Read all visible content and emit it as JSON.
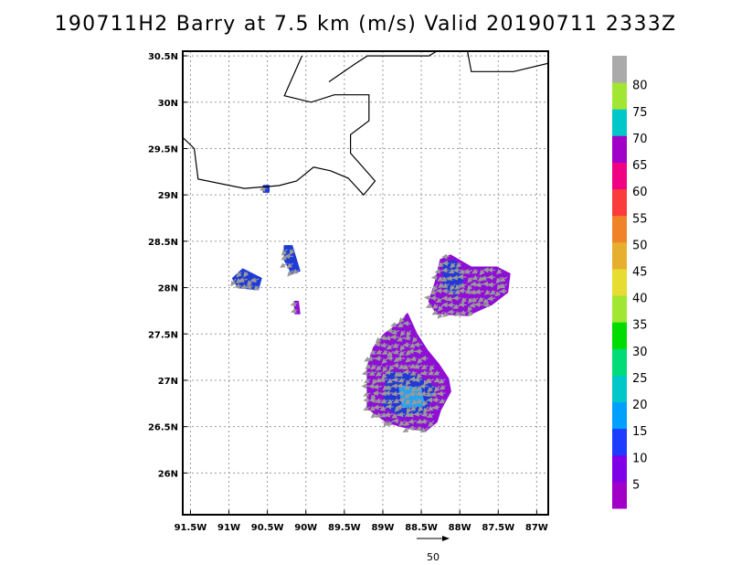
{
  "title": "190711H2 Barry at 7.5 km (m/s) Valid 20190711  2333Z",
  "x_ticks": [
    {
      "value": -91.5,
      "label": "91.5W"
    },
    {
      "value": -91.0,
      "label": "91W"
    },
    {
      "value": -90.5,
      "label": "90.5W"
    },
    {
      "value": -90.0,
      "label": "90W"
    },
    {
      "value": -89.5,
      "label": "89.5W"
    },
    {
      "value": -89.0,
      "label": "89W"
    },
    {
      "value": -88.5,
      "label": "88.5W"
    },
    {
      "value": -88.0,
      "label": "88W"
    },
    {
      "value": -87.5,
      "label": "87.5W"
    },
    {
      "value": -87.0,
      "label": "87W"
    }
  ],
  "y_ticks": [
    {
      "value": 30.5,
      "label": "30.5N"
    },
    {
      "value": 30.0,
      "label": "30N"
    },
    {
      "value": 29.5,
      "label": "29.5N"
    },
    {
      "value": 29.0,
      "label": "29N"
    },
    {
      "value": 28.5,
      "label": "28.5N"
    },
    {
      "value": 28.0,
      "label": "28N"
    },
    {
      "value": 27.5,
      "label": "27.5N"
    },
    {
      "value": 27.0,
      "label": "27N"
    },
    {
      "value": 26.5,
      "label": "26.5N"
    },
    {
      "value": 26.0,
      "label": "26N"
    }
  ],
  "extent": {
    "lon_min": -91.6,
    "lon_max": -86.85,
    "lat_min": 25.55,
    "lat_max": 30.55
  },
  "colorbar": {
    "labels": [
      "5",
      "10",
      "15",
      "20",
      "25",
      "30",
      "35",
      "40",
      "45",
      "50",
      "55",
      "60",
      "65",
      "70",
      "75",
      "80"
    ],
    "colors": [
      "#a000c8",
      "#7f00e6",
      "#1e3cff",
      "#00a0ff",
      "#00c8c8",
      "#00dc78",
      "#00dc00",
      "#a0e632",
      "#e6dc32",
      "#e6af2d",
      "#f08228",
      "#fa3c3c",
      "#f00082",
      "#a000c8",
      "#00c8c8",
      "#a0e632",
      "#aaaaaa"
    ]
  },
  "reference_vector": {
    "label": "50"
  },
  "coastline": [
    [
      [
        -91.6,
        29.62
      ],
      [
        -91.45,
        29.5
      ],
      [
        -91.4,
        29.17
      ],
      [
        -90.8,
        29.07
      ],
      [
        -90.35,
        29.1
      ],
      [
        -90.12,
        29.15
      ],
      [
        -89.9,
        29.3
      ],
      [
        -89.68,
        29.26
      ],
      [
        -89.45,
        29.18
      ],
      [
        -89.25,
        29.0
      ],
      [
        -89.1,
        29.15
      ],
      [
        -89.42,
        29.45
      ],
      [
        -89.42,
        29.65
      ],
      [
        -89.18,
        29.8
      ],
      [
        -89.18,
        30.08
      ],
      [
        -89.63,
        30.08
      ],
      [
        -89.93,
        30.0
      ],
      [
        -90.28,
        30.07
      ],
      [
        -90.05,
        30.5
      ]
    ],
    [
      [
        -89.7,
        30.22
      ],
      [
        -89.35,
        30.42
      ],
      [
        -89.2,
        30.5
      ],
      [
        -88.7,
        30.5
      ],
      [
        -88.4,
        30.5
      ],
      [
        -88.3,
        30.55
      ]
    ],
    [
      [
        -87.9,
        30.55
      ],
      [
        -87.85,
        30.33
      ],
      [
        -87.3,
        30.33
      ],
      [
        -86.85,
        30.42
      ]
    ]
  ],
  "wind_regions": [
    {
      "name": "main-storm-region",
      "polygon": [
        [
          -89.2,
          27.15
        ],
        [
          -89.12,
          27.35
        ],
        [
          -88.98,
          27.5
        ],
        [
          -88.78,
          27.62
        ],
        [
          -88.68,
          27.72
        ],
        [
          -88.56,
          27.5
        ],
        [
          -88.42,
          27.32
        ],
        [
          -88.28,
          27.18
        ],
        [
          -88.15,
          27.02
        ],
        [
          -88.12,
          26.88
        ],
        [
          -88.25,
          26.68
        ],
        [
          -88.3,
          26.55
        ],
        [
          -88.45,
          26.45
        ],
        [
          -88.75,
          26.5
        ],
        [
          -88.95,
          26.55
        ],
        [
          -89.2,
          26.7
        ]
      ],
      "color": "#8f0fd6",
      "bands": [
        {
          "polygon": [
            [
              -88.95,
              27.1
            ],
            [
              -88.6,
              27.08
            ],
            [
              -88.3,
              26.92
            ],
            [
              -88.45,
              26.65
            ],
            [
              -88.75,
              26.6
            ],
            [
              -89.0,
              26.72
            ]
          ],
          "color": "#1f3bd6"
        },
        {
          "polygon": [
            [
              -88.8,
              26.95
            ],
            [
              -88.5,
              26.92
            ],
            [
              -88.45,
              26.72
            ],
            [
              -88.75,
              26.7
            ]
          ],
          "color": "#28a8f0"
        }
      ]
    },
    {
      "name": "northeast-band-region",
      "polygon": [
        [
          -88.25,
          28.3
        ],
        [
          -88.12,
          28.35
        ],
        [
          -87.85,
          28.22
        ],
        [
          -87.52,
          28.22
        ],
        [
          -87.35,
          28.15
        ],
        [
          -87.38,
          27.95
        ],
        [
          -87.58,
          27.82
        ],
        [
          -87.9,
          27.7
        ],
        [
          -88.3,
          27.72
        ],
        [
          -88.4,
          27.85
        ],
        [
          -88.32,
          28.05
        ]
      ],
      "color": "#8f0fd6",
      "bands": [
        {
          "polygon": [
            [
              -88.22,
              28.28
            ],
            [
              -88.05,
              28.3
            ],
            [
              -87.95,
              28.08
            ],
            [
              -88.05,
              27.9
            ],
            [
              -88.22,
              28.0
            ]
          ],
          "color": "#1f3bd6"
        }
      ]
    },
    {
      "name": "west-echo-region",
      "polygon": [
        [
          -90.95,
          28.1
        ],
        [
          -90.82,
          28.2
        ],
        [
          -90.58,
          28.1
        ],
        [
          -90.62,
          27.98
        ],
        [
          -90.88,
          28.0
        ]
      ],
      "color": "#1f3bd6",
      "bands": []
    },
    {
      "name": "central-echo-region",
      "polygon": [
        [
          -90.28,
          28.45
        ],
        [
          -90.18,
          28.45
        ],
        [
          -90.08,
          28.18
        ],
        [
          -90.18,
          28.15
        ],
        [
          -90.28,
          28.3
        ]
      ],
      "color": "#1f3bd6",
      "bands": []
    },
    {
      "name": "small-echo-region",
      "polygon": [
        [
          -90.15,
          27.85
        ],
        [
          -90.1,
          27.85
        ],
        [
          -90.08,
          27.72
        ],
        [
          -90.14,
          27.72
        ]
      ],
      "color": "#8f0fd6",
      "bands": []
    },
    {
      "name": "coast-echo-region",
      "polygon": [
        [
          -90.55,
          29.1
        ],
        [
          -90.48,
          29.1
        ],
        [
          -90.48,
          29.03
        ],
        [
          -90.55,
          29.03
        ]
      ],
      "color": "#1f3bd6",
      "bands": []
    }
  ]
}
